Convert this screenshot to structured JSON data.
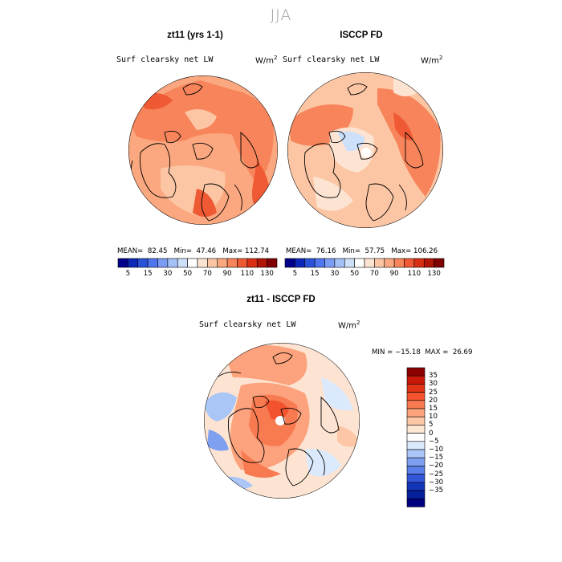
{
  "season": "JJA",
  "panels": [
    {
      "title": "zt11 (yrs 1-1)",
      "variable": "Surf clearsky net LW",
      "units_base": "W/m",
      "units_exp": "2",
      "stats": "MEAN=  82.45   Min=  47.46   Max= 112.74"
    },
    {
      "title": "ISCCP FD",
      "variable": "Surf clearsky net LW",
      "units_base": "W/m",
      "units_exp": "2",
      "stats": "MEAN=  76.16   Min=  57.75   Max= 106.26"
    },
    {
      "title": "zt11 - ISCCP FD",
      "variable": "Surf clearsky net LW",
      "units_base": "W/m",
      "units_exp": "2",
      "stats": "MIN = −15.18  MAX =  26.69"
    }
  ],
  "colorbar_abs": {
    "labels": [
      "5",
      "15",
      "30",
      "50",
      "70",
      "90",
      "110",
      "130"
    ],
    "colors": [
      "#00008b",
      "#0b28b8",
      "#2a52d8",
      "#4f76ee",
      "#7a9cf5",
      "#a5c0f7",
      "#cde0f9",
      "#ffffff",
      "#fde4d2",
      "#fcc6a4",
      "#fba77f",
      "#f7845a",
      "#ef5a34",
      "#d93015",
      "#b01505",
      "#7f0000"
    ]
  },
  "colorbar_diff": {
    "labels": [
      "35",
      "30",
      "25",
      "20",
      "15",
      "10",
      "5",
      "0",
      "−5",
      "−10",
      "−15",
      "−20",
      "−25",
      "−30",
      "−35"
    ],
    "colors": [
      "#8b0000",
      "#c81808",
      "#e33417",
      "#f2532e",
      "#f87a50",
      "#fca27c",
      "#fdc7a7",
      "#fee6d4",
      "#ffffff",
      "#dbe9fc",
      "#a9c6f7",
      "#7f9ff1",
      "#5a7fe8",
      "#3157d6",
      "#1335b8",
      "#061f9c",
      "#000080"
    ]
  }
}
